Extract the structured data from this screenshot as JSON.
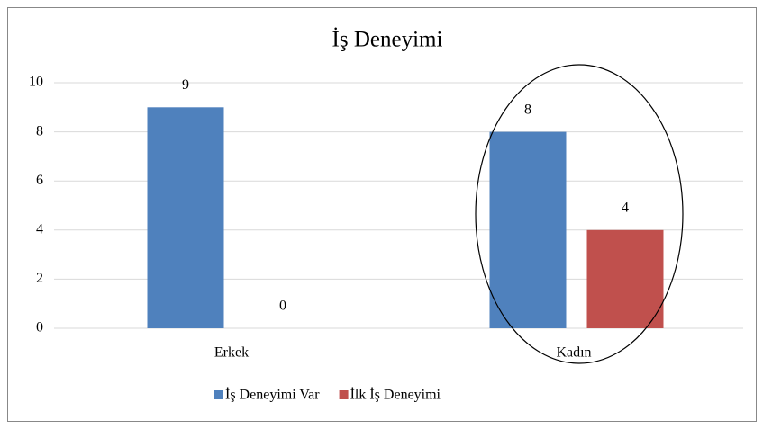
{
  "chart_data": {
    "type": "bar",
    "title": "İş Deneyimi",
    "categories": [
      "Erkek",
      "Kadın"
    ],
    "series": [
      {
        "name": "İş Deneyimi Var",
        "color": "#4f81bd",
        "values": [
          9,
          8
        ]
      },
      {
        "name": "İlk İş Deneyimi",
        "color": "#c0504d",
        "values": [
          0,
          4
        ]
      }
    ],
    "ylim": [
      0,
      10
    ],
    "yticks": [
      0,
      2,
      4,
      6,
      8,
      10
    ],
    "grid": true,
    "legend": "bottom"
  }
}
